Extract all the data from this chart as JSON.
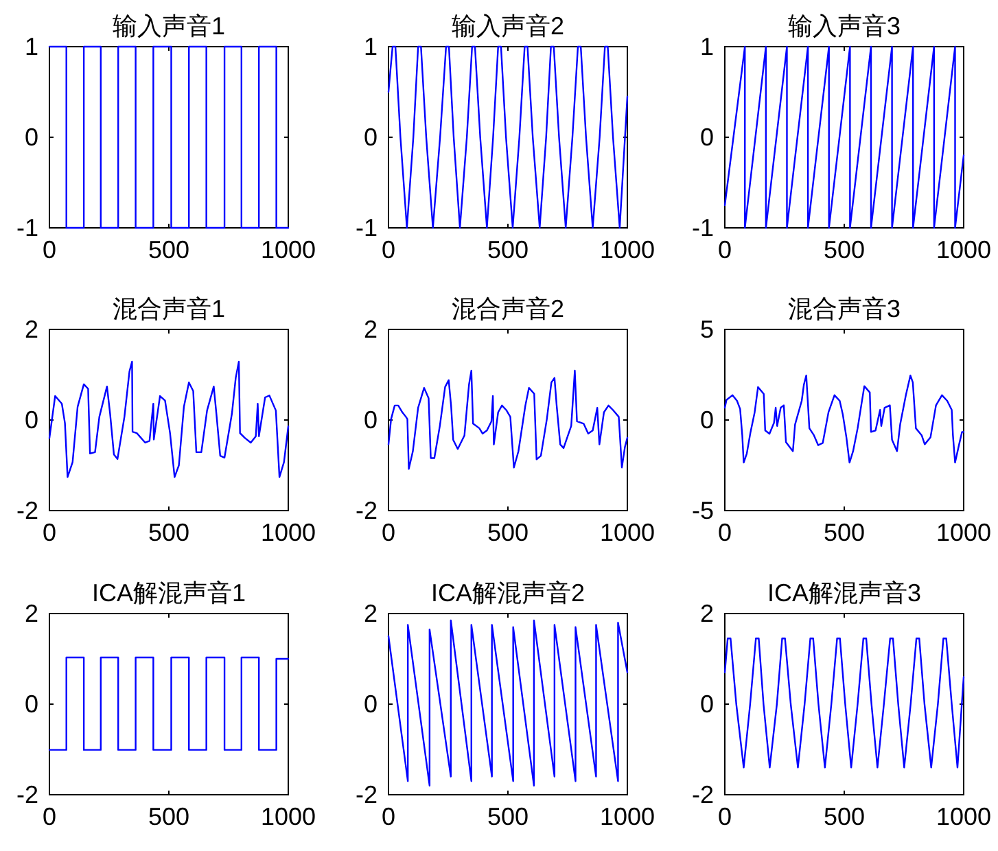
{
  "chart_data": [
    {
      "type": "line",
      "title": "输入声音1",
      "xlim": [
        0,
        1000
      ],
      "xticks": [
        0,
        500,
        1000
      ],
      "ylim": [
        -1,
        1
      ],
      "yticks": [
        -1,
        0,
        1
      ],
      "x": [
        0,
        71,
        71,
        144,
        144,
        215,
        215,
        288,
        288,
        361,
        361,
        435,
        435,
        510,
        510,
        584,
        584,
        657,
        657,
        733,
        733,
        804,
        804,
        877,
        877,
        950,
        950,
        1000
      ],
      "series": [
        {
          "color": "#0000ff",
          "values": [
            1,
            1,
            -1,
            -1,
            1,
            1,
            -1,
            -1,
            1,
            1,
            -1,
            -1,
            1,
            1,
            -1,
            -1,
            1,
            1,
            -1,
            -1,
            1,
            1,
            -1,
            -1,
            1,
            1,
            -1,
            -1
          ]
        }
      ]
    },
    {
      "type": "line",
      "title": "输入声音2",
      "xlim": [
        0,
        1000
      ],
      "xticks": [
        0,
        500,
        1000
      ],
      "ylim": [
        -1,
        1
      ],
      "yticks": [
        -1,
        0,
        1
      ],
      "x": [
        0,
        17,
        29,
        50,
        77,
        104,
        124,
        136,
        158,
        186,
        216,
        241,
        253,
        273,
        299,
        328,
        350,
        362,
        384,
        412,
        438,
        459,
        471,
        492,
        520,
        548,
        570,
        582,
        604,
        633,
        660,
        680,
        692,
        714,
        742,
        770,
        793,
        805,
        827,
        855,
        884,
        906,
        918,
        940,
        968,
        1000
      ],
      "series": [
        {
          "color": "#0000ff",
          "values": [
            0.5,
            1,
            1,
            0,
            -1,
            0,
            1,
            1,
            0,
            -1,
            0,
            1,
            1,
            0,
            -1,
            0,
            1,
            1,
            0,
            -1,
            0,
            1,
            1,
            0,
            -1,
            0,
            1,
            1,
            0,
            -1,
            0,
            1,
            1,
            0,
            -1,
            0,
            1,
            1,
            0,
            -1,
            0,
            1,
            1,
            0,
            -1,
            0.45
          ]
        }
      ]
    },
    {
      "type": "line",
      "title": "输入声音3",
      "xlim": [
        0,
        1000
      ],
      "xticks": [
        0,
        500,
        1000
      ],
      "ylim": [
        -1,
        1
      ],
      "yticks": [
        -1,
        0,
        1
      ],
      "x": [
        0,
        84,
        84,
        172,
        172,
        260,
        260,
        348,
        348,
        436,
        436,
        524,
        524,
        612,
        612,
        700,
        700,
        788,
        788,
        876,
        876,
        964,
        964,
        1000
      ],
      "series": [
        {
          "color": "#0000ff",
          "values": [
            -0.75,
            1,
            -1,
            1,
            -1,
            1,
            -1,
            1,
            -1,
            1,
            -1,
            1,
            -1,
            1,
            -1,
            1,
            -1,
            1,
            -1,
            1,
            -1,
            1,
            -1,
            -0.2
          ]
        }
      ]
    },
    {
      "type": "line",
      "title": "混合声音1",
      "xlim": [
        0,
        1000
      ],
      "xticks": [
        0,
        500,
        1000
      ],
      "ylim": [
        -2,
        2
      ],
      "yticks": [
        -2,
        0,
        2
      ],
      "x": [
        0,
        24,
        52,
        65,
        76,
        97,
        118,
        144,
        162,
        170,
        191,
        209,
        241,
        254,
        270,
        285,
        314,
        335,
        346,
        348,
        366,
        401,
        419,
        435,
        437,
        463,
        484,
        505,
        524,
        542,
        563,
        584,
        602,
        615,
        636,
        660,
        688,
        699,
        715,
        733,
        764,
        780,
        793,
        798,
        819,
        843,
        864,
        872,
        877,
        903,
        921,
        948,
        963,
        982,
        1000
      ],
      "series": [
        {
          "color": "#0000ff",
          "values": [
            -0.4,
            0.53,
            0.36,
            -0.07,
            -1.26,
            -0.93,
            0.29,
            0.79,
            0.69,
            -0.74,
            -0.71,
            0.07,
            0.74,
            0.14,
            -0.76,
            -0.86,
            0.07,
            1.07,
            1.29,
            -0.26,
            -0.29,
            -0.5,
            -0.46,
            0.36,
            -0.43,
            0.53,
            0.43,
            -0.29,
            -1.26,
            -1.0,
            0.29,
            0.83,
            0.64,
            -0.71,
            -0.71,
            0.21,
            0.74,
            0.14,
            -0.79,
            -0.83,
            0.14,
            0.93,
            1.29,
            -0.29,
            -0.4,
            -0.5,
            -0.36,
            0.36,
            -0.36,
            0.5,
            0.54,
            0.21,
            -1.26,
            -0.93,
            -0.14
          ]
        }
      ]
    },
    {
      "type": "line",
      "title": "混合声音2",
      "xlim": [
        0,
        1000
      ],
      "xticks": [
        0,
        500,
        1000
      ],
      "ylim": [
        -2,
        2
      ],
      "yticks": [
        -2,
        0,
        2
      ],
      "x": [
        0,
        11,
        26,
        41,
        58,
        73,
        79,
        85,
        102,
        124,
        149,
        168,
        177,
        192,
        215,
        237,
        252,
        262,
        271,
        290,
        318,
        337,
        347,
        354,
        380,
        394,
        412,
        431,
        437,
        441,
        459,
        475,
        493,
        510,
        525,
        544,
        573,
        588,
        610,
        620,
        638,
        663,
        682,
        695,
        704,
        719,
        733,
        765,
        780,
        789,
        817,
        836,
        855,
        874,
        883,
        902,
        921,
        940,
        964,
        977,
        990,
        1000
      ],
      "series": [
        {
          "color": "#0000ff",
          "values": [
            -0.54,
            0.02,
            0.32,
            0.32,
            0.17,
            0.07,
            0.02,
            -1.08,
            -0.69,
            0.27,
            0.71,
            0.48,
            -0.84,
            -0.84,
            -0.13,
            0.73,
            0.88,
            0.32,
            -0.44,
            -0.64,
            -0.34,
            0.78,
            1.09,
            -0.08,
            -0.18,
            -0.3,
            -0.23,
            -0.03,
            0.53,
            -0.54,
            0.17,
            0.32,
            0.22,
            0.07,
            -1.05,
            -0.69,
            0.32,
            0.71,
            0.58,
            -0.87,
            -0.79,
            0.02,
            0.83,
            0.93,
            0.32,
            -0.54,
            -0.62,
            -0.13,
            1.09,
            -0.03,
            -0.08,
            -0.3,
            -0.23,
            0.27,
            -0.54,
            0.17,
            0.32,
            0.22,
            0.07,
            -1.05,
            -0.59,
            -0.39
          ]
        }
      ]
    },
    {
      "type": "line",
      "title": "混合声音3",
      "xlim": [
        0,
        1000
      ],
      "xticks": [
        0,
        500,
        1000
      ],
      "ylim": [
        -5,
        5
      ],
      "yticks": [
        -5,
        0,
        5
      ],
      "x": [
        0,
        7,
        32,
        51,
        64,
        73,
        79,
        92,
        107,
        125,
        139,
        163,
        169,
        187,
        206,
        213,
        219,
        234,
        247,
        256,
        285,
        294,
        322,
        331,
        341,
        354,
        373,
        391,
        410,
        434,
        459,
        481,
        494,
        509,
        522,
        537,
        556,
        584,
        607,
        612,
        631,
        650,
        655,
        669,
        691,
        700,
        721,
        734,
        758,
        777,
        787,
        800,
        824,
        837,
        861,
        884,
        909,
        931,
        950,
        955,
        964,
        981,
        993,
        1000
      ],
      "series": [
        {
          "color": "#0000ff",
          "values": [
            0.68,
            1.11,
            1.37,
            1.06,
            0.61,
            -0.84,
            -2.35,
            -1.85,
            -0.71,
            0.43,
            1.82,
            1.44,
            -0.58,
            -0.76,
            -0.15,
            0.68,
            -0.33,
            0.68,
            0.81,
            -1.22,
            -1.72,
            -0.25,
            1.06,
            1.95,
            2.46,
            -0.46,
            -0.84,
            -1.39,
            -1.27,
            0.43,
            1.37,
            1.06,
            0.3,
            -0.96,
            -2.35,
            -1.72,
            -0.46,
            1.87,
            1.52,
            -0.66,
            -0.58,
            0.56,
            -0.33,
            0.68,
            0.81,
            -1.09,
            -1.72,
            -0.25,
            1.37,
            2.46,
            2.08,
            -0.46,
            -0.84,
            -1.34,
            -0.96,
            0.81,
            1.37,
            1.06,
            0.56,
            -0.84,
            -2.35,
            -1.34,
            -0.66,
            -0.66
          ]
        }
      ]
    },
    {
      "type": "line",
      "title": "ICA解混声音1",
      "xlim": [
        0,
        1000
      ],
      "xticks": [
        0,
        500,
        1000
      ],
      "ylim": [
        -2,
        2
      ],
      "yticks": [
        -2,
        0,
        2
      ],
      "x": [
        0,
        71,
        71,
        144,
        144,
        215,
        215,
        288,
        288,
        361,
        361,
        435,
        435,
        510,
        510,
        584,
        584,
        657,
        657,
        733,
        733,
        804,
        804,
        877,
        877,
        950,
        950,
        1000
      ],
      "series": [
        {
          "color": "#0000ff",
          "values": [
            -1.01,
            -1.01,
            1.03,
            1.03,
            -1.01,
            -1.01,
            1.03,
            1.03,
            -1.01,
            -1.01,
            1.03,
            1.03,
            -1.01,
            -1.01,
            1.03,
            1.03,
            -1.01,
            -1.01,
            1.03,
            1.03,
            -1.01,
            -1.01,
            1.03,
            1.03,
            -1.01,
            -1.01,
            1.0,
            1.0
          ]
        }
      ]
    },
    {
      "type": "line",
      "title": "ICA解混声音2",
      "xlim": [
        0,
        1000
      ],
      "xticks": [
        0,
        500,
        1000
      ],
      "ylim": [
        -2,
        2
      ],
      "yticks": [
        -2,
        0,
        2
      ],
      "x": [
        0,
        81,
        81,
        172,
        172,
        261,
        261,
        347,
        347,
        433,
        433,
        522,
        522,
        609,
        609,
        695,
        695,
        783,
        783,
        869,
        869,
        961,
        961,
        1000
      ],
      "series": [
        {
          "color": "#0000ff",
          "values": [
            1.5,
            -1.7,
            1.75,
            -1.8,
            1.65,
            -1.6,
            1.85,
            -1.7,
            1.75,
            -1.6,
            1.75,
            -1.7,
            1.7,
            -1.8,
            1.85,
            -1.6,
            1.75,
            -1.7,
            1.7,
            -1.6,
            1.75,
            -1.7,
            1.8,
            0.7
          ]
        }
      ]
    },
    {
      "type": "line",
      "title": "ICA解混声音3",
      "xlim": [
        0,
        1000
      ],
      "xticks": [
        0,
        500,
        1000
      ],
      "ylim": [
        -2,
        2
      ],
      "yticks": [
        -2,
        0,
        2
      ],
      "x": [
        0,
        12,
        24,
        48,
        79,
        106,
        130,
        142,
        162,
        188,
        218,
        240,
        252,
        276,
        306,
        334,
        358,
        370,
        392,
        419,
        446,
        470,
        482,
        504,
        529,
        556,
        580,
        592,
        614,
        639,
        666,
        692,
        704,
        726,
        751,
        778,
        802,
        814,
        836,
        864,
        892,
        915,
        927,
        950,
        974,
        1000
      ],
      "series": [
        {
          "color": "#0000ff",
          "values": [
            0.7,
            1.45,
            1.45,
            0,
            -1.4,
            0,
            1.45,
            1.45,
            0,
            -1.4,
            0,
            1.45,
            1.45,
            0,
            -1.4,
            0,
            1.45,
            1.45,
            0,
            -1.4,
            0,
            1.45,
            1.45,
            0,
            -1.4,
            0,
            1.45,
            1.45,
            0,
            -1.4,
            0,
            1.45,
            1.45,
            0,
            -1.4,
            0,
            1.45,
            1.45,
            0,
            -1.4,
            0,
            1.45,
            1.45,
            0,
            -1.4,
            0.6
          ]
        }
      ]
    }
  ]
}
